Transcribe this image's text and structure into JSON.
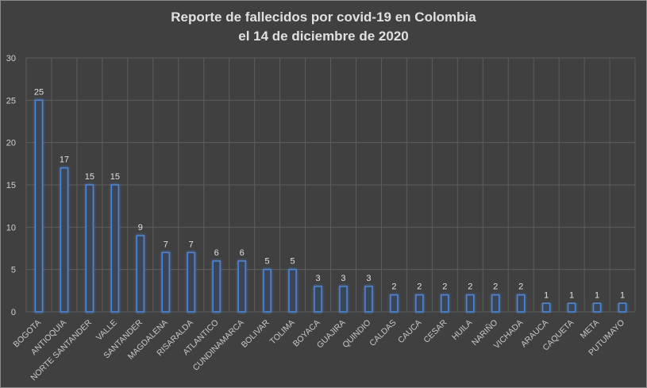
{
  "chart_data": {
    "type": "bar",
    "title": "Reporte de fallecidos por covid-19 en Colombia",
    "subtitle": "el 14 de diciembre de 2020",
    "categories": [
      "BOGOTA",
      "ANTIOQUIA",
      "NORTE SANTANDER",
      "VALLE",
      "SANTANDER",
      "MAGDALENA",
      "RISARALDA",
      "ATLANTICO",
      "CUNDINAMARCA",
      "BOLIVAR",
      "TOLIMA",
      "BOYACA",
      "GUAJIRA",
      "QUINDIO",
      "CALDAS",
      "CAUCA",
      "CESAR",
      "HUILA",
      "NARIÑO",
      "VICHADA",
      "ARAUCA",
      "CAQUETA",
      "META",
      "PUTUMAYO"
    ],
    "values": [
      25,
      17,
      15,
      15,
      9,
      7,
      7,
      6,
      6,
      5,
      5,
      3,
      3,
      3,
      2,
      2,
      2,
      2,
      2,
      2,
      1,
      1,
      1,
      1
    ],
    "ylim": [
      0,
      30
    ],
    "yticks": [
      0,
      5,
      10,
      15,
      20,
      25,
      30
    ],
    "grid": true,
    "data_labels": true,
    "xlabel": "",
    "ylabel": "",
    "colors": {
      "background": "#404040",
      "bar_outline": "#4f86d6",
      "bar_fill": "#3a4556",
      "grid": "#5c5c5c"
    }
  }
}
